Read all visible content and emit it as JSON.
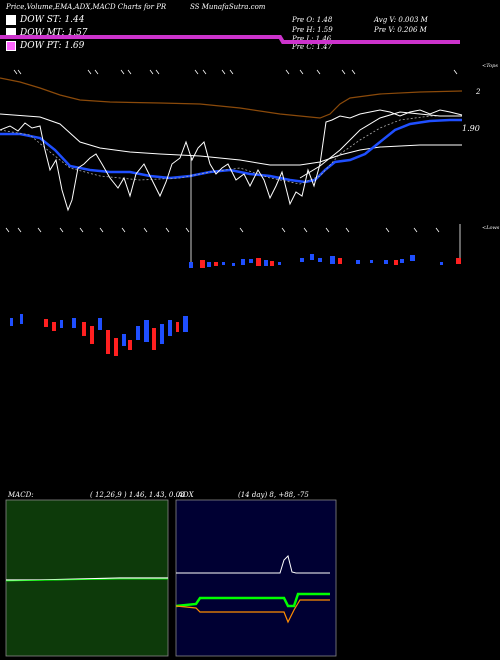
{
  "header": {
    "title": "Price,Volume,EMA,ADX,MACD Charts for PR",
    "site": "SS MunafaSutra.com"
  },
  "legend": [
    {
      "label": "DOW ST: 1.44",
      "color": "#ffffff"
    },
    {
      "label": "DOW MT: 1.57",
      "color": "#ffffff"
    },
    {
      "label": "DOW PT: 1.69",
      "color": "#ff66ff"
    }
  ],
  "stats": {
    "prev_open": "Pre   O: 1.48",
    "prev_high": "Pre   H: 1.59",
    "prev_low": "Pre   L: 1.46",
    "prev_close": "Pre   C: 1.47",
    "avg_volume": "Avg V: 0.003  M",
    "prev_volume": "Pre   V: 0.206  M"
  },
  "price_labels": {
    "top": "<Tops",
    "two": "2",
    "one_ninety": "1.90",
    "lows": "<Lows"
  },
  "macd_panel": {
    "label": "MACD:",
    "params": "( 12,26,9 ) 1.46,  1.43,  0.03"
  },
  "adx_panel": {
    "label": "ADX",
    "params": "(14  day) 8,  +88,  -75"
  },
  "colors": {
    "ema_fast": "#1f4fff",
    "pt_band": "#cc33cc",
    "resistance": "#8b4a0a",
    "macd_bg": "#0d3a0a",
    "adx_plus": "#00ff00",
    "adx_minus": "#ff8c00"
  },
  "chart_data": {
    "type": "line",
    "title": "Price,Volume,EMA,ADX,MACD Charts for PR",
    "series": [
      {
        "name": "DOW ST",
        "values": [
          1.44
        ]
      },
      {
        "name": "DOW MT",
        "values": [
          1.57
        ]
      },
      {
        "name": "DOW PT",
        "values": [
          1.69
        ]
      }
    ],
    "ohlc_previous": {
      "open": 1.48,
      "high": 1.59,
      "low": 1.46,
      "close": 1.47
    },
    "volume_m": {
      "average": 0.003,
      "previous": 0.206
    },
    "macd": {
      "fast": 12,
      "slow": 26,
      "signal": 9,
      "values": [
        1.46,
        1.43,
        0.03
      ]
    },
    "adx": {
      "period_days": 14,
      "adx": 8,
      "plus_di": 88,
      "minus_di": -75
    },
    "price_axis_ticks": [
      2,
      1.9
    ]
  }
}
